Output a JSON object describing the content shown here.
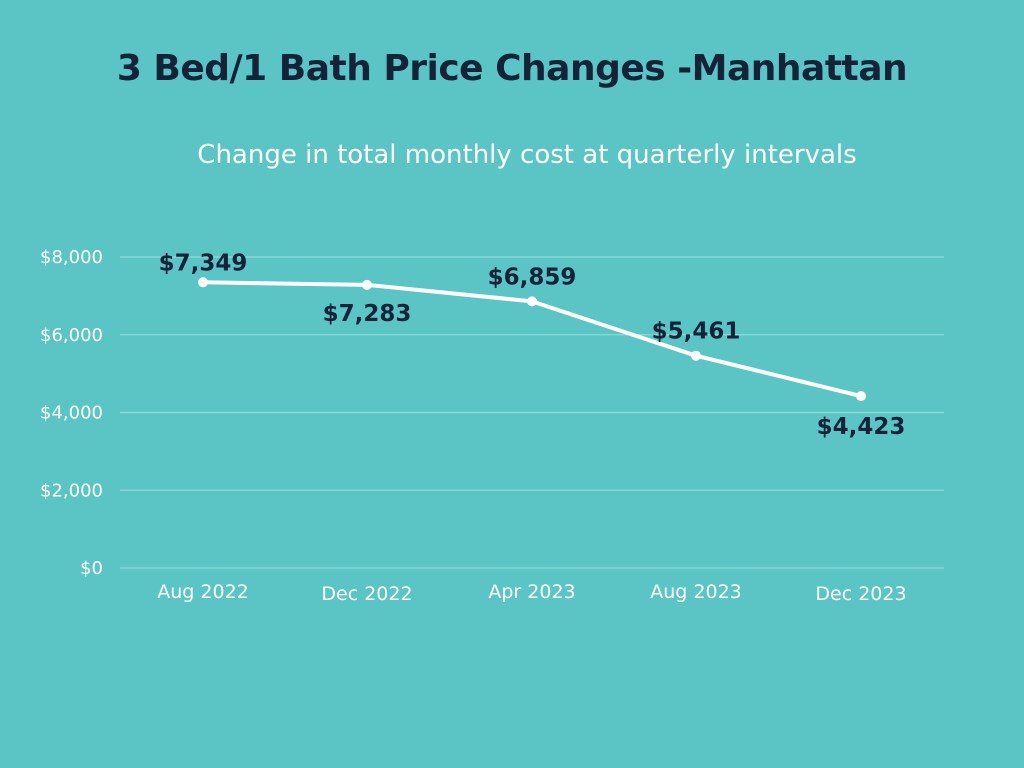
{
  "chart_data": {
    "type": "line",
    "title": "3 Bed/1 Bath Price Changes -Manhattan",
    "subtitle": "Change in total monthly cost at quarterly intervals",
    "categories": [
      "Aug 2022",
      "Dec 2022",
      "Apr 2023",
      "Aug 2023",
      "Dec 2023"
    ],
    "series": [
      {
        "name": "Total monthly cost",
        "values": [
          7349,
          7283,
          6859,
          5461,
          4423
        ],
        "labels": [
          "$7,349",
          "$7,283",
          "$6,859",
          "$5,461",
          "$4,423"
        ]
      }
    ],
    "ylim": [
      0,
      8000
    ],
    "yticks": [
      0,
      2000,
      4000,
      6000,
      8000
    ],
    "ytick_labels": [
      "$0",
      "$2,000",
      "$4,000",
      "$6,000",
      "$8,000"
    ],
    "xlabel": "",
    "ylabel": "",
    "grid": true,
    "legend": "none"
  },
  "colors": {
    "background": "#5bc5c5",
    "title": "#15233a",
    "line": "#ffffff",
    "gridline": "#8fd9d9"
  }
}
